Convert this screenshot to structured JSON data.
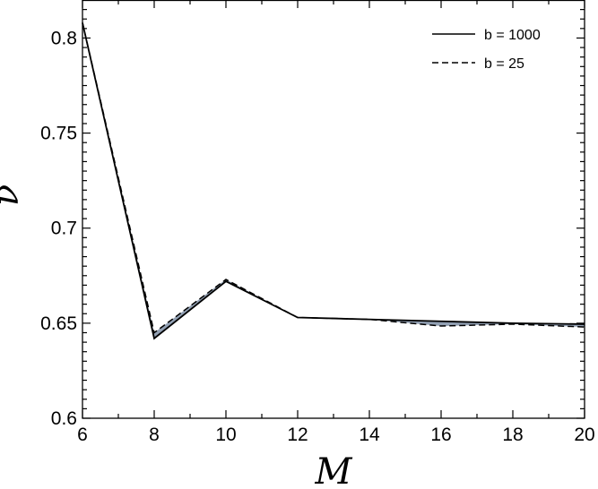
{
  "chart_data": {
    "type": "line",
    "title": "",
    "xlabel": "M",
    "ylabel": "ν",
    "xlim": [
      6,
      20
    ],
    "ylim": [
      0.6,
      0.82
    ],
    "x_ticks": [
      6,
      8,
      10,
      12,
      14,
      16,
      18,
      20
    ],
    "y_ticks": [
      0.6,
      0.65,
      0.7,
      0.75,
      0.8
    ],
    "x_tick_labels": [
      "6",
      "8",
      "10",
      "12",
      "14",
      "16",
      "18",
      "20"
    ],
    "y_tick_labels": [
      "0.6",
      "0.65",
      "0.7",
      "0.75",
      "0.8"
    ],
    "grid": false,
    "legend_position": "top-right",
    "fill_color": "#7f8fa6",
    "series": [
      {
        "name": "b = 1000",
        "style": "solid",
        "x": [
          6,
          8,
          10,
          12,
          14,
          16,
          18,
          20
        ],
        "values": [
          0.808,
          0.642,
          0.672,
          0.653,
          0.652,
          0.651,
          0.65,
          0.6495
        ]
      },
      {
        "name": "b = 25",
        "style": "dashed",
        "x": [
          6,
          8,
          10,
          12,
          14,
          16,
          18,
          20
        ],
        "values": [
          0.808,
          0.645,
          0.673,
          0.653,
          0.652,
          0.6485,
          0.6495,
          0.648
        ]
      }
    ]
  }
}
